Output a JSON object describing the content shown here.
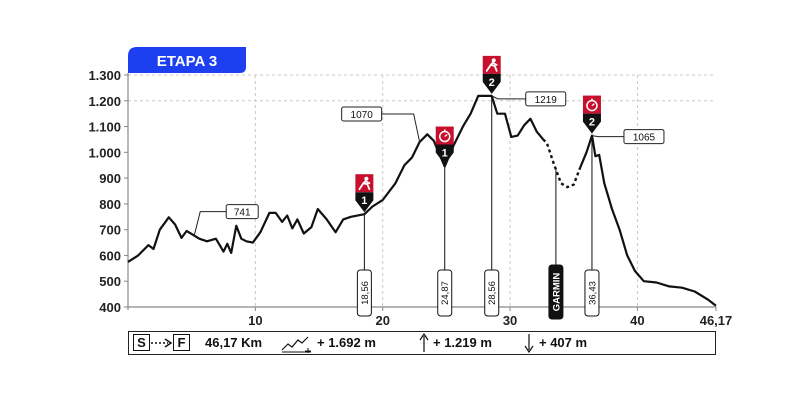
{
  "chart_data": {
    "type": "line",
    "title": "ETAPA 3",
    "xlabel": "",
    "ylabel": "",
    "xlim": [
      0,
      46.17
    ],
    "ylim": [
      400,
      1300
    ],
    "x_ticks": [
      10,
      20,
      30,
      40,
      46.17
    ],
    "x_tick_labels": [
      "10",
      "20",
      "30",
      "40",
      "46,17"
    ],
    "y_ticks": [
      400,
      500,
      600,
      700,
      800,
      900,
      1000,
      1100,
      1200,
      1300
    ],
    "y_tick_labels": [
      "400",
      "500",
      "600",
      "700",
      "800",
      "900",
      "1.000",
      "1.100",
      "1.200",
      "1.300"
    ],
    "grid": "vertical dashed",
    "series": [
      {
        "x": [
          0,
          0.8,
          1.6,
          2.0,
          2.5,
          3.2,
          3.7,
          4.2,
          4.6,
          5.1,
          5.6,
          6.2,
          6.9,
          7.5,
          7.8,
          8.1,
          8.5,
          8.9,
          9.3,
          9.8,
          10.4,
          11.1,
          11.6,
          12.1,
          12.5,
          12.9,
          13.3,
          13.8,
          14.4,
          14.9,
          15.6,
          16.3,
          16.9,
          17.5,
          18.56,
          19.2,
          20.0,
          21.0,
          21.7,
          22.3,
          22.9,
          23.5,
          24.0,
          24.87,
          25.6,
          26.3,
          26.9,
          27.5,
          28.0,
          28.56,
          29.0,
          29.6,
          30.1,
          30.6,
          31.1,
          31.6,
          32.1,
          32.6,
          32.9,
          33.4,
          34.0,
          34.5,
          35.0,
          35.5,
          36.0,
          36.43,
          36.7,
          37.0,
          37.4,
          38.0,
          38.6,
          39.2,
          39.8,
          40.5,
          41.5,
          42.5,
          43.5,
          44.5,
          45.5,
          46.17
        ],
        "y": [
          575,
          600,
          640,
          625,
          700,
          748,
          720,
          668,
          695,
          680,
          665,
          655,
          665,
          615,
          645,
          610,
          715,
          665,
          655,
          650,
          690,
          765,
          765,
          730,
          755,
          705,
          740,
          685,
          710,
          780,
          740,
          690,
          740,
          750,
          760,
          790,
          815,
          880,
          950,
          980,
          1040,
          1070,
          1045,
          945,
          1030,
          1100,
          1150,
          1219,
          1219,
          1219,
          1150,
          1150,
          1060,
          1065,
          1105,
          1130,
          1080,
          1050,
          1035,
          960,
          880,
          865,
          875,
          940,
          1000,
          1065,
          985,
          990,
          880,
          780,
          700,
          600,
          540,
          500,
          495,
          480,
          475,
          460,
          430,
          405
        ]
      }
    ],
    "dotted_segment": [
      32.6,
      35.5
    ],
    "summits": [
      {
        "x": 5.2,
        "elevation": "741"
      },
      {
        "x": 22.9,
        "elevation": "1070"
      },
      {
        "x": 28.56,
        "elevation": "1219"
      },
      {
        "x": 36.43,
        "elevation": "1065"
      }
    ],
    "markers": [
      {
        "km": 18.56,
        "label": "18,56",
        "category": "1",
        "icon": "runner-icon"
      },
      {
        "km": 24.87,
        "label": "24,87",
        "category": "1",
        "icon": "timer-icon"
      },
      {
        "km": 28.56,
        "label": "28,56",
        "category": "2",
        "icon": "runner-icon"
      },
      {
        "km": 36.43,
        "label": "36,43",
        "category": "2",
        "icon": "timer-icon"
      }
    ],
    "sponsor_marker": {
      "km": 33.6,
      "label": "GARMIN"
    }
  },
  "stats": {
    "start": "S",
    "finish": "F",
    "distance": "46,17 Km",
    "elevation_gain": "+ 1.692 m",
    "max_altitude": "+ 1.219 m",
    "min_altitude": "+ 407 m",
    "icons": [
      "start-finish-icon",
      "ascent-graph-icon",
      "arrow-up-icon",
      "arrow-down-icon"
    ]
  },
  "colors": {
    "line": "#111111",
    "title_bg": "#1d3ff2",
    "marker": "#c8102e",
    "axis": "#888888"
  }
}
